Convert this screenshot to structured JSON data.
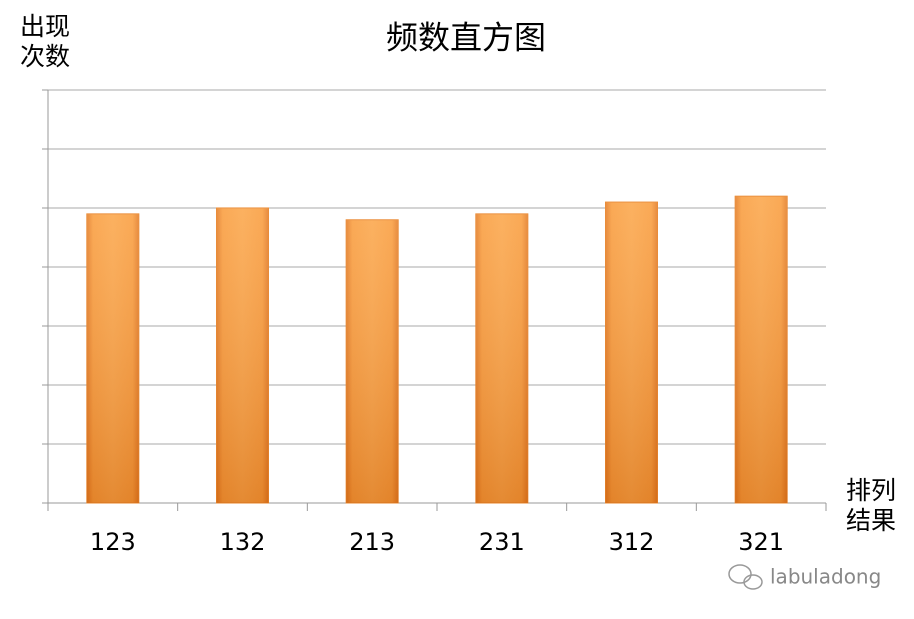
{
  "chart_data": {
    "type": "bar",
    "title": "频数直方图",
    "ylabel": "出现\n次数",
    "xlabel": "排列\n结果",
    "categories": [
      "123",
      "132",
      "213",
      "231",
      "312",
      "321"
    ],
    "values": [
      4.9,
      5.0,
      4.8,
      4.9,
      5.1,
      5.2
    ],
    "color": "#f7952e",
    "ylim": [
      0,
      7
    ],
    "yticks": [
      0,
      1,
      2,
      3,
      4,
      5,
      6,
      7
    ],
    "ytick_labels": false,
    "grid": true
  },
  "watermark": "labuladong"
}
